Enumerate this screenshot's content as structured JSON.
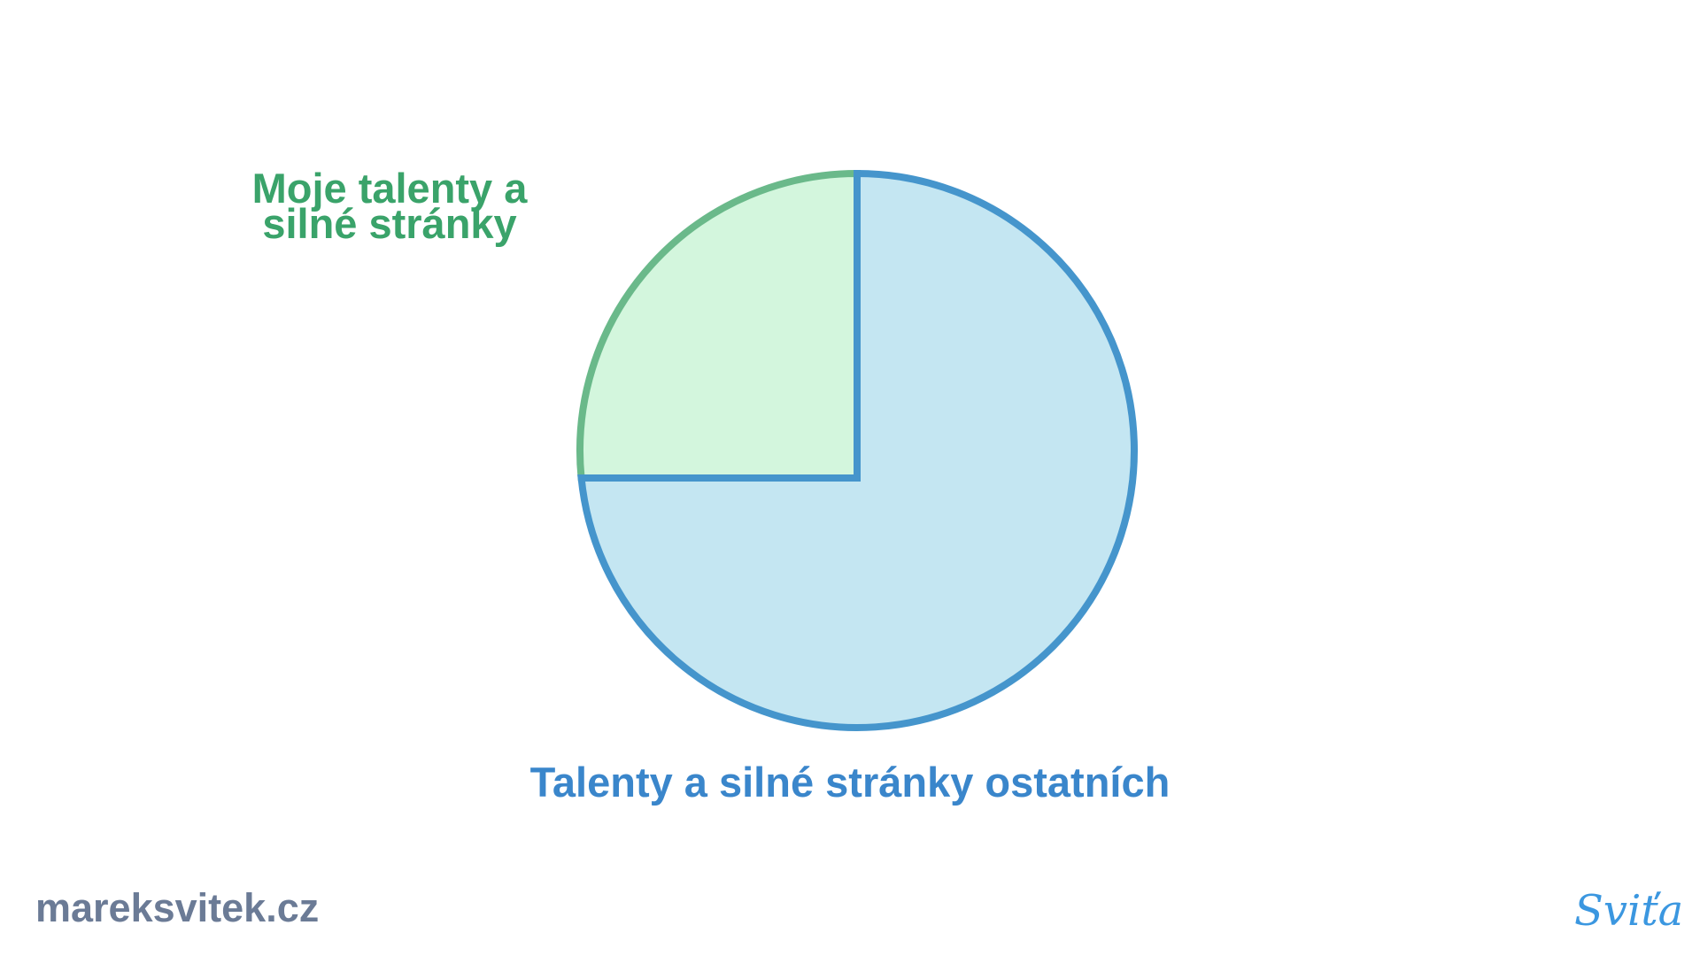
{
  "chart_data": {
    "type": "pie",
    "slices": [
      {
        "label": "Moje talenty a silné stránky",
        "value": 25,
        "fill": "#d3f6dd",
        "stroke": "#6ab98a",
        "text_color": "#3aa36a"
      },
      {
        "label": "Talenty a silné stránky ostatních",
        "value": 75,
        "fill": "#c4e6f2",
        "stroke": "#4595cc",
        "text_color": "#3a86cb"
      }
    ]
  },
  "labels": {
    "mine_line1": "Moje talenty a",
    "mine_line2": "silné stránky",
    "others": "Talenty a silné stránky ostatních"
  },
  "footer": {
    "website": "mareksvitek.cz",
    "signature": "Sviťa"
  }
}
